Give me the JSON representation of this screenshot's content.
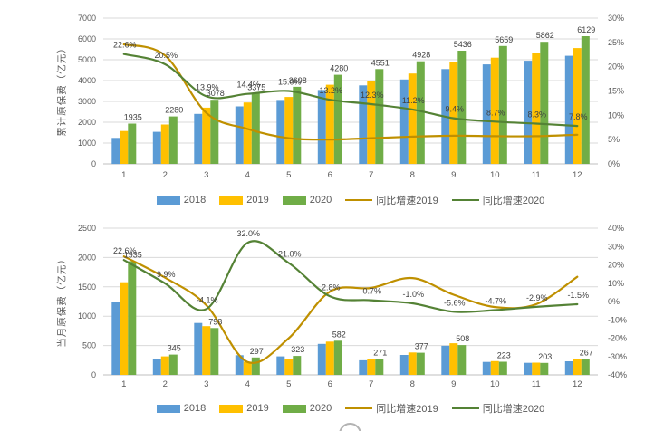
{
  "colors": {
    "bar_2018": "#5B9BD5",
    "bar_2019": "#FFC000",
    "bar_2020": "#70AD47",
    "line_2019": "#BF9000",
    "line_2020": "#548235",
    "grid": "#D9D9D9",
    "axis_line": "#BFBFBF",
    "tick_text": "#595959",
    "data_label_text": "#404040"
  },
  "chart_data": [
    {
      "type": "bar+line",
      "title": "",
      "y_axis_title": "累计原保费（亿元）",
      "categories": [
        "1",
        "2",
        "3",
        "4",
        "5",
        "6",
        "7",
        "8",
        "9",
        "10",
        "11",
        "12"
      ],
      "left_axis": {
        "min": 0,
        "max": 7000,
        "step": 1000
      },
      "right_axis": {
        "min": 0,
        "max": 30,
        "step": 5,
        "suffix": "%"
      },
      "grid": true,
      "legend_position": "bottom",
      "legend": [
        "2018",
        "2019",
        "2020",
        "同比增速2019",
        "同比增速2020"
      ],
      "series": [
        {
          "name": "2018",
          "kind": "bar",
          "color_key": "bar_2018",
          "values": [
            1250,
            1540,
            2400,
            2760,
            3070,
            3550,
            3770,
            4050,
            4550,
            4780,
            4950,
            5190
          ]
        },
        {
          "name": "2019",
          "kind": "bar",
          "color_key": "bar_2019",
          "values": [
            1578,
            1890,
            2700,
            2950,
            3215,
            3800,
            3985,
            4340,
            4870,
            5100,
            5330,
            5560
          ]
        },
        {
          "name": "2020",
          "kind": "bar",
          "color_key": "bar_2020",
          "values": [
            1935,
            2280,
            3078,
            3375,
            3698,
            4280,
            4551,
            4928,
            5436,
            5659,
            5862,
            6129
          ],
          "labels": [
            "1935",
            "2280",
            "3078",
            "3375",
            "3698",
            "4280",
            "4551",
            "4928",
            "5436",
            "5659",
            "5862",
            "6129"
          ]
        },
        {
          "name": "同比增速2019",
          "kind": "line",
          "axis": "right",
          "color_key": "line_2019",
          "values": [
            24.6,
            22.3,
            10.5,
            7.2,
            5.3,
            5.0,
            5.3,
            5.6,
            5.8,
            5.7,
            5.7,
            6.0
          ]
        },
        {
          "name": "同比增速2020",
          "kind": "line",
          "axis": "right",
          "color_key": "line_2020",
          "values": [
            22.6,
            20.5,
            13.9,
            14.4,
            15.0,
            13.2,
            12.3,
            11.2,
            9.4,
            8.7,
            8.3,
            7.8
          ],
          "labels": [
            "22.6%",
            "20.5%",
            "13.9%",
            "14.4%",
            "15.0%",
            "13.2%",
            "12.3%",
            "11.2%",
            "9.4%",
            "8.7%",
            "8.3%",
            "7.8%"
          ]
        }
      ]
    },
    {
      "type": "bar+line",
      "title": "",
      "y_axis_title": "当月原保费（亿元）",
      "categories": [
        "1",
        "2",
        "3",
        "4",
        "5",
        "6",
        "7",
        "8",
        "9",
        "10",
        "11",
        "12"
      ],
      "left_axis": {
        "min": 0,
        "max": 2500,
        "step": 500
      },
      "right_axis": {
        "min": -40,
        "max": 40,
        "step": 10,
        "suffix": "%"
      },
      "grid": true,
      "legend_position": "bottom",
      "legend": [
        "2018",
        "2019",
        "2020",
        "同比增速2019",
        "同比增速2020"
      ],
      "series": [
        {
          "name": "2018",
          "kind": "bar",
          "color_key": "bar_2018",
          "values": [
            1250,
            270,
            885,
            335,
            315,
            528,
            248,
            340,
            495,
            220,
            205,
            232
          ]
        },
        {
          "name": "2019",
          "kind": "bar",
          "color_key": "bar_2019",
          "values": [
            1578,
            315,
            830,
            225,
            262,
            566,
            269,
            381,
            538,
            234,
            209,
            271
          ]
        },
        {
          "name": "2020",
          "kind": "bar",
          "color_key": "bar_2020",
          "values": [
            1935,
            345,
            798,
            297,
            323,
            582,
            271,
            377,
            508,
            223,
            203,
            267
          ],
          "labels": [
            "1935",
            "345",
            "798",
            "297",
            "323",
            "582",
            "271",
            "377",
            "508",
            "223",
            "203",
            "267"
          ]
        },
        {
          "name": "同比增速2019",
          "kind": "line",
          "axis": "right",
          "color_key": "line_2019",
          "values": [
            24.6,
            13.0,
            -2.0,
            -33.0,
            -20.0,
            5.4,
            7.4,
            12.8,
            3.7,
            -3.0,
            -1.5,
            13.5
          ]
        },
        {
          "name": "同比增速2020",
          "kind": "line",
          "axis": "right",
          "color_key": "line_2020",
          "values": [
            22.6,
            9.9,
            -4.1,
            32.0,
            21.0,
            2.8,
            0.7,
            -1.0,
            -5.6,
            -4.7,
            -2.9,
            -1.5
          ],
          "labels": [
            "22.6%",
            "9.9%",
            "-4.1%",
            "32.0%",
            "21.0%",
            "2.8%",
            "0.7%",
            "-1.0%",
            "-5.6%",
            "-4.7%",
            "-2.9%",
            "-1.5%"
          ]
        }
      ]
    }
  ]
}
